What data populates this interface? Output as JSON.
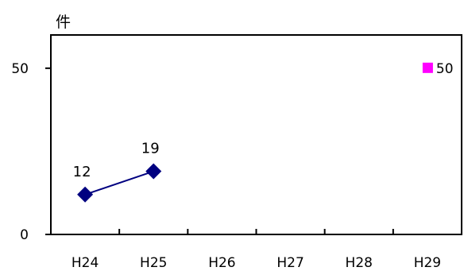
{
  "chart_data": {
    "type": "line",
    "categories": [
      "H24",
      "H25",
      "H26",
      "H27",
      "H28",
      "H29"
    ],
    "y_unit": "件",
    "ylim": [
      0,
      60
    ],
    "y_ticks": [
      0,
      50
    ],
    "grid": false,
    "series": [
      {
        "marker": "diamond",
        "color": "#000080",
        "values": [
          12,
          19,
          null,
          null,
          null,
          null
        ],
        "data_labels": [
          "12",
          "19",
          null,
          null,
          null,
          null
        ]
      }
    ],
    "target": {
      "category": "H29",
      "value": 50,
      "marker": "square",
      "color": "#ff00ff",
      "label": "50"
    }
  }
}
